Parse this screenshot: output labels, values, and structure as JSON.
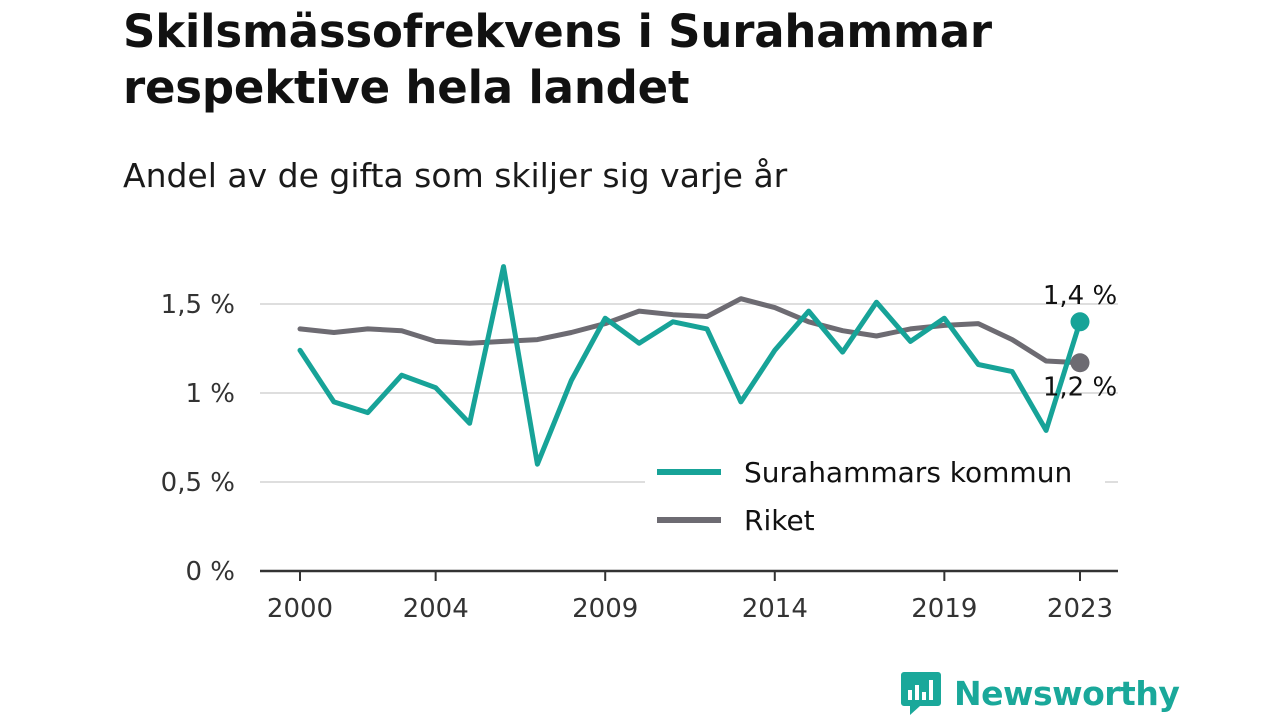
{
  "header": {
    "title": "Skilsmässofrekvens i Surahammar respektive hela landet",
    "subtitle": "Andel av de gifta som skiljer sig varje år"
  },
  "brand": {
    "name": "Newsworthy",
    "color": "#1aa89a"
  },
  "chart_data": {
    "type": "line",
    "title": "Skilsmässofrekvens i Surahammar respektive hela landet",
    "subtitle": "Andel av de gifta som skiljer sig varje år",
    "xlabel": "",
    "ylabel": "",
    "x": [
      2000,
      2001,
      2002,
      2003,
      2004,
      2005,
      2006,
      2007,
      2008,
      2009,
      2010,
      2011,
      2012,
      2013,
      2014,
      2015,
      2016,
      2017,
      2018,
      2019,
      2020,
      2021,
      2022,
      2023
    ],
    "x_ticks": [
      2000,
      2004,
      2009,
      2014,
      2019,
      2023
    ],
    "x_tick_labels": [
      "2000",
      "2004",
      "2009",
      "2014",
      "2019",
      "2023"
    ],
    "ylim": [
      0,
      1.5
    ],
    "y_ticks": [
      0,
      0.5,
      1,
      1.5
    ],
    "y_tick_labels": [
      "0 %",
      "0,5 %",
      "1 %",
      "1,5 %"
    ],
    "grid": true,
    "legend_position": "bottom-right",
    "series": [
      {
        "name": "Surahammars kommun",
        "color": "#17a398",
        "values": [
          1.24,
          0.95,
          0.89,
          1.1,
          1.03,
          0.83,
          1.71,
          0.6,
          1.07,
          1.42,
          1.28,
          1.4,
          1.36,
          0.95,
          1.24,
          1.46,
          1.23,
          1.51,
          1.29,
          1.42,
          1.16,
          1.12,
          0.79,
          1.4
        ],
        "end_label": "1,4 %"
      },
      {
        "name": "Riket",
        "color": "#6d6b72",
        "values": [
          1.36,
          1.34,
          1.36,
          1.35,
          1.29,
          1.28,
          1.29,
          1.3,
          1.34,
          1.39,
          1.46,
          1.44,
          1.43,
          1.53,
          1.48,
          1.4,
          1.35,
          1.32,
          1.36,
          1.38,
          1.39,
          1.3,
          1.18,
          1.17
        ],
        "end_label": "1,2 %"
      }
    ]
  }
}
